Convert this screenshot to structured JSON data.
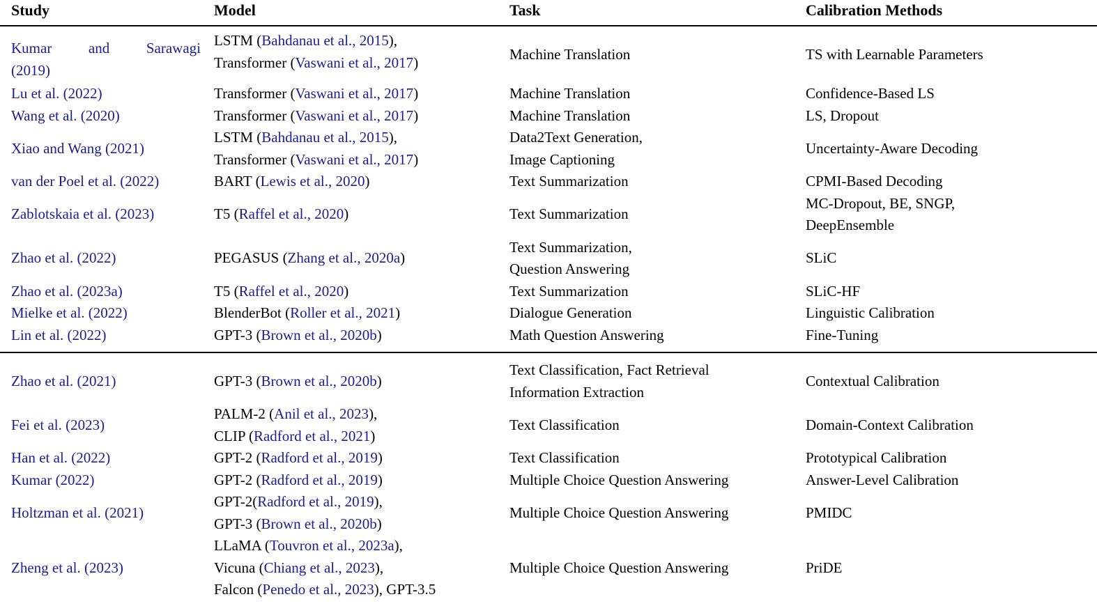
{
  "colors": {
    "citation": "#1c1c96",
    "text": "#000000",
    "rule": "#000000"
  },
  "header": {
    "columns": [
      "Study",
      "Model",
      "Task",
      "Calibration Methods"
    ]
  },
  "sections": [
    {
      "rows": [
        {
          "study": [
            [
              {
                "t": "Kumar and Sarawagi",
                "cite": true
              }
            ],
            [
              {
                "t": "(2019)",
                "cite": true
              }
            ]
          ],
          "model": [
            [
              {
                "t": "LSTM ("
              },
              {
                "t": "Bahdanau et al., 2015",
                "cite": true
              },
              {
                "t": "),"
              }
            ],
            [
              {
                "t": "Transformer ("
              },
              {
                "t": "Vaswani et al., 2017",
                "cite": true
              },
              {
                "t": ")"
              }
            ]
          ],
          "task": [
            [
              {
                "t": "Machine Translation"
              }
            ]
          ],
          "methods": [
            [
              {
                "t": "TS with Learnable Parameters"
              }
            ]
          ]
        },
        {
          "study": [
            [
              {
                "t": "Lu et al. (2022)",
                "cite": true
              }
            ]
          ],
          "model": [
            [
              {
                "t": "Transformer ("
              },
              {
                "t": "Vaswani et al., 2017",
                "cite": true
              },
              {
                "t": ")"
              }
            ]
          ],
          "task": [
            [
              {
                "t": "Machine Translation"
              }
            ]
          ],
          "methods": [
            [
              {
                "t": "Confidence-Based LS"
              }
            ]
          ]
        },
        {
          "study": [
            [
              {
                "t": "Wang et al. (2020)",
                "cite": true
              }
            ]
          ],
          "model": [
            [
              {
                "t": "Transformer ("
              },
              {
                "t": "Vaswani et al., 2017",
                "cite": true
              },
              {
                "t": ")"
              }
            ]
          ],
          "task": [
            [
              {
                "t": "Machine Translation"
              }
            ]
          ],
          "methods": [
            [
              {
                "t": "LS, Dropout"
              }
            ]
          ]
        },
        {
          "study": [
            [
              {
                "t": "Xiao and Wang (2021)",
                "cite": true
              }
            ]
          ],
          "model": [
            [
              {
                "t": "LSTM ("
              },
              {
                "t": "Bahdanau et al., 2015",
                "cite": true
              },
              {
                "t": "),"
              }
            ],
            [
              {
                "t": "Transformer ("
              },
              {
                "t": "Vaswani et al., 2017",
                "cite": true
              },
              {
                "t": ")"
              }
            ]
          ],
          "task": [
            [
              {
                "t": "Data2Text Generation,"
              }
            ],
            [
              {
                "t": "Image Captioning"
              }
            ]
          ],
          "methods": [
            [
              {
                "t": "Uncertainty-Aware Decoding"
              }
            ]
          ]
        },
        {
          "study": [
            [
              {
                "t": "van der Poel et al. (2022)",
                "cite": true
              }
            ]
          ],
          "model": [
            [
              {
                "t": "BART ("
              },
              {
                "t": "Lewis et al., 2020",
                "cite": true
              },
              {
                "t": ")"
              }
            ]
          ],
          "task": [
            [
              {
                "t": "Text Summarization"
              }
            ]
          ],
          "methods": [
            [
              {
                "t": "CPMI-Based Decoding"
              }
            ]
          ]
        },
        {
          "study": [
            [
              {
                "t": "Zablotskaia et al. (2023)",
                "cite": true
              }
            ]
          ],
          "model": [
            [
              {
                "t": "T5 ("
              },
              {
                "t": "Raffel et al., 2020",
                "cite": true
              },
              {
                "t": ")"
              }
            ]
          ],
          "task": [
            [
              {
                "t": "Text Summarization"
              }
            ]
          ],
          "methods": [
            [
              {
                "t": "MC-Dropout, BE, SNGP,"
              }
            ],
            [
              {
                "t": "DeepEnsemble"
              }
            ]
          ]
        },
        {
          "study": [
            [
              {
                "t": "Zhao et al. (2022)",
                "cite": true
              }
            ]
          ],
          "model": [
            [
              {
                "t": "PEGASUS ("
              },
              {
                "t": "Zhang et al., 2020a",
                "cite": true
              },
              {
                "t": ")"
              }
            ]
          ],
          "task": [
            [
              {
                "t": "Text Summarization,"
              }
            ],
            [
              {
                "t": "Question Answering"
              }
            ]
          ],
          "methods": [
            [
              {
                "t": "SLiC"
              }
            ]
          ]
        },
        {
          "study": [
            [
              {
                "t": "Zhao et al. (2023a)",
                "cite": true
              }
            ]
          ],
          "model": [
            [
              {
                "t": "T5 ("
              },
              {
                "t": "Raffel et al., 2020",
                "cite": true
              },
              {
                "t": ")"
              }
            ]
          ],
          "task": [
            [
              {
                "t": "Text Summarization"
              }
            ]
          ],
          "methods": [
            [
              {
                "t": "SLiC-HF"
              }
            ]
          ]
        },
        {
          "study": [
            [
              {
                "t": "Mielke et al. (2022)",
                "cite": true
              }
            ]
          ],
          "model": [
            [
              {
                "t": "BlenderBot ("
              },
              {
                "t": "Roller et al., 2021",
                "cite": true
              },
              {
                "t": ")"
              }
            ]
          ],
          "task": [
            [
              {
                "t": "Dialogue Generation"
              }
            ]
          ],
          "methods": [
            [
              {
                "t": "Linguistic Calibration"
              }
            ]
          ]
        },
        {
          "study": [
            [
              {
                "t": "Lin et al. (2022)",
                "cite": true
              }
            ]
          ],
          "model": [
            [
              {
                "t": "GPT-3 ("
              },
              {
                "t": "Brown et al., 2020b",
                "cite": true
              },
              {
                "t": ")"
              }
            ]
          ],
          "task": [
            [
              {
                "t": "Math Question Answering"
              }
            ]
          ],
          "methods": [
            [
              {
                "t": "Fine-Tuning"
              }
            ]
          ]
        }
      ]
    },
    {
      "rows": [
        {
          "study": [
            [
              {
                "t": "Zhao et al. (2021)",
                "cite": true
              }
            ]
          ],
          "model": [
            [
              {
                "t": "GPT-3 ("
              },
              {
                "t": "Brown et al., 2020b",
                "cite": true
              },
              {
                "t": ")"
              }
            ]
          ],
          "task": [
            [
              {
                "t": "Text Classification, Fact Retrieval"
              }
            ],
            [
              {
                "t": "Information Extraction"
              }
            ]
          ],
          "methods": [
            [
              {
                "t": "Contextual Calibration"
              }
            ]
          ]
        },
        {
          "study": [
            [
              {
                "t": "Fei et al. (2023)",
                "cite": true
              }
            ]
          ],
          "model": [
            [
              {
                "t": "PALM-2 ("
              },
              {
                "t": "Anil et al., 2023",
                "cite": true
              },
              {
                "t": "),"
              }
            ],
            [
              {
                "t": "CLIP ("
              },
              {
                "t": "Radford et al., 2021",
                "cite": true
              },
              {
                "t": ")"
              }
            ]
          ],
          "task": [
            [
              {
                "t": "Text Classification"
              }
            ]
          ],
          "methods": [
            [
              {
                "t": "Domain-Context Calibration"
              }
            ]
          ]
        },
        {
          "study": [
            [
              {
                "t": "Han et al. (2022)",
                "cite": true
              }
            ]
          ],
          "model": [
            [
              {
                "t": "GPT-2 ("
              },
              {
                "t": "Radford et al., 2019",
                "cite": true
              },
              {
                "t": ")"
              }
            ]
          ],
          "task": [
            [
              {
                "t": "Text Classification"
              }
            ]
          ],
          "methods": [
            [
              {
                "t": "Prototypical Calibration"
              }
            ]
          ]
        },
        {
          "study": [
            [
              {
                "t": "Kumar (2022)",
                "cite": true
              }
            ]
          ],
          "model": [
            [
              {
                "t": "GPT-2 ("
              },
              {
                "t": "Radford et al., 2019",
                "cite": true
              },
              {
                "t": ")"
              }
            ]
          ],
          "task": [
            [
              {
                "t": "Multiple Choice Question Answering"
              }
            ]
          ],
          "methods": [
            [
              {
                "t": "Answer-Level Calibration"
              }
            ]
          ]
        },
        {
          "study": [
            [
              {
                "t": "Holtzman et al. (2021)",
                "cite": true
              }
            ]
          ],
          "model": [
            [
              {
                "t": "GPT-2("
              },
              {
                "t": "Radford et al., 2019",
                "cite": true
              },
              {
                "t": "),"
              }
            ],
            [
              {
                "t": "GPT-3 ("
              },
              {
                "t": "Brown et al., 2020b",
                "cite": true
              },
              {
                "t": ")"
              }
            ]
          ],
          "task": [
            [
              {
                "t": "Multiple Choice Question Answering"
              }
            ]
          ],
          "methods": [
            [
              {
                "t": "PMIDC"
              }
            ]
          ]
        },
        {
          "study": [
            [
              {
                "t": "Zheng et al. (2023)",
                "cite": true
              }
            ]
          ],
          "model": [
            [
              {
                "t": "LLaMA ("
              },
              {
                "t": "Touvron et al., 2023a",
                "cite": true
              },
              {
                "t": "),"
              }
            ],
            [
              {
                "t": "Vicuna ("
              },
              {
                "t": "Chiang et al., 2023",
                "cite": true
              },
              {
                "t": "),"
              }
            ],
            [
              {
                "t": "Falcon ("
              },
              {
                "t": "Penedo et al., 2023",
                "cite": true
              },
              {
                "t": "), GPT-3.5"
              }
            ]
          ],
          "task": [
            [
              {
                "t": "Multiple Choice Question Answering"
              }
            ]
          ],
          "methods": [
            [
              {
                "t": "PriDE"
              }
            ]
          ]
        }
      ]
    }
  ]
}
